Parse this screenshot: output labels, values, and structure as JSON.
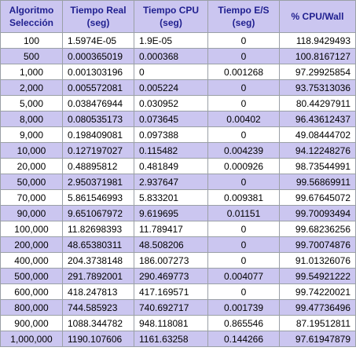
{
  "table": {
    "headers": [
      [
        "Algoritmo",
        "Selección"
      ],
      [
        "Tiempo Real",
        "(seg)"
      ],
      [
        "Tiempo CPU",
        "(seg)"
      ],
      [
        "Tiempo E/S",
        "(seg)"
      ],
      [
        "% CPU/Wall",
        ""
      ]
    ],
    "rows": [
      [
        "100",
        "1.5974E-05",
        "1.9E-05",
        "0",
        "118.9429493"
      ],
      [
        "500",
        "0.000365019",
        "0.000368",
        "0",
        "100.8167127"
      ],
      [
        "1,000",
        "0.001303196",
        "0",
        "0.001268",
        "97.29925854"
      ],
      [
        "2,000",
        "0.005572081",
        "0.005224",
        "0",
        "93.75313036"
      ],
      [
        "5,000",
        "0.038476944",
        "0.030952",
        "0",
        "80.44297911"
      ],
      [
        "8,000",
        "0.080535173",
        "0.073645",
        "0.00402",
        "96.43612437"
      ],
      [
        "9,000",
        "0.198409081",
        "0.097388",
        "0",
        "49.08444702"
      ],
      [
        "10,000",
        "0.127197027",
        "0.115482",
        "0.004239",
        "94.12248276"
      ],
      [
        "20,000",
        "0.48895812",
        "0.481849",
        "0.000926",
        "98.73544991"
      ],
      [
        "50,000",
        "2.950371981",
        "2.937647",
        "0",
        "99.56869911"
      ],
      [
        "70,000",
        "5.861546993",
        "5.833201",
        "0.009381",
        "99.67645072"
      ],
      [
        "90,000",
        "9.651067972",
        "9.619695",
        "0.01151",
        "99.70093494"
      ],
      [
        "100,000",
        "11.82698393",
        "11.789417",
        "0",
        "99.68236256"
      ],
      [
        "200,000",
        "48.65380311",
        "48.508206",
        "0",
        "99.70074876"
      ],
      [
        "400,000",
        "204.3738148",
        "186.007273",
        "0",
        "91.01326076"
      ],
      [
        "500,000",
        "291.7892001",
        "290.469773",
        "0.004077",
        "99.54921222"
      ],
      [
        "600,000",
        "418.247813",
        "417.169571",
        "0",
        "99.74220021"
      ],
      [
        "800,000",
        "744.585923",
        "740.692717",
        "0.001739",
        "99.47736496"
      ],
      [
        "900,000",
        "1088.344782",
        "948.118081",
        "0.865546",
        "87.19512811"
      ],
      [
        "1,000,000",
        "1190.107606",
        "1161.63258",
        "0.144266",
        "97.61947879"
      ]
    ]
  }
}
